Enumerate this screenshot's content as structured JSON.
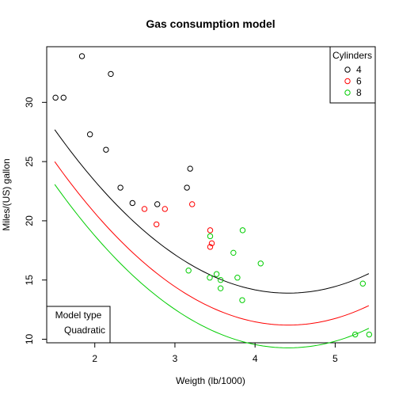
{
  "chart_data": {
    "type": "scatter",
    "title": "Gas consumption model",
    "xlabel": "Weigth (lb/1000)",
    "ylabel": "Miles/(US) gallon",
    "xlim": [
      1.4,
      5.5
    ],
    "ylim": [
      9.7,
      34.7
    ],
    "x_ticks": [
      2,
      3,
      4,
      5
    ],
    "y_ticks": [
      10,
      15,
      20,
      25,
      30
    ],
    "grid": false,
    "legend": {
      "title": "Cylinders",
      "placement": "top-right",
      "entries": [
        "4",
        "6",
        "8"
      ]
    },
    "model_legend": {
      "title": "Model type",
      "placement": "bottom-left",
      "entries": [
        "Quadratic"
      ]
    },
    "series": [
      {
        "name": "4",
        "color": "#000000",
        "points": [
          {
            "x": 1.51,
            "y": 30.4
          },
          {
            "x": 1.61,
            "y": 30.4
          },
          {
            "x": 1.84,
            "y": 33.9
          },
          {
            "x": 1.94,
            "y": 27.3
          },
          {
            "x": 2.14,
            "y": 26.0
          },
          {
            "x": 2.2,
            "y": 32.4
          },
          {
            "x": 2.32,
            "y": 22.8
          },
          {
            "x": 2.47,
            "y": 21.5
          },
          {
            "x": 2.78,
            "y": 21.4
          },
          {
            "x": 3.15,
            "y": 22.8
          },
          {
            "x": 3.19,
            "y": 24.4
          }
        ],
        "curve": {
          "x_start": 1.5,
          "x_end": 5.42,
          "a": 45.56,
          "b": -14.35,
          "c": 1.6257
        }
      },
      {
        "name": "6",
        "color": "#ff0000",
        "points": [
          {
            "x": 2.62,
            "y": 21.0
          },
          {
            "x": 2.77,
            "y": 19.7
          },
          {
            "x": 2.875,
            "y": 21.0
          },
          {
            "x": 3.215,
            "y": 21.4
          },
          {
            "x": 3.44,
            "y": 17.8
          },
          {
            "x": 3.44,
            "y": 19.2
          },
          {
            "x": 3.46,
            "y": 18.1
          }
        ],
        "curve": {
          "x_start": 1.5,
          "x_end": 5.42,
          "a": 42.86,
          "b": -14.35,
          "c": 1.6257
        }
      },
      {
        "name": "8",
        "color": "#00cd00",
        "points": [
          {
            "x": 3.17,
            "y": 15.8
          },
          {
            "x": 3.44,
            "y": 18.7
          },
          {
            "x": 3.435,
            "y": 15.2
          },
          {
            "x": 3.52,
            "y": 15.5
          },
          {
            "x": 3.57,
            "y": 15.0
          },
          {
            "x": 3.57,
            "y": 14.3
          },
          {
            "x": 3.73,
            "y": 17.3
          },
          {
            "x": 3.78,
            "y": 15.2
          },
          {
            "x": 3.84,
            "y": 13.3
          },
          {
            "x": 3.845,
            "y": 19.2
          },
          {
            "x": 4.07,
            "y": 16.4
          },
          {
            "x": 5.25,
            "y": 10.4
          },
          {
            "x": 5.345,
            "y": 14.7
          },
          {
            "x": 5.424,
            "y": 10.4
          }
        ],
        "curve": {
          "x_start": 1.5,
          "x_end": 5.42,
          "a": 40.94,
          "b": -14.35,
          "c": 1.6257
        }
      }
    ]
  }
}
